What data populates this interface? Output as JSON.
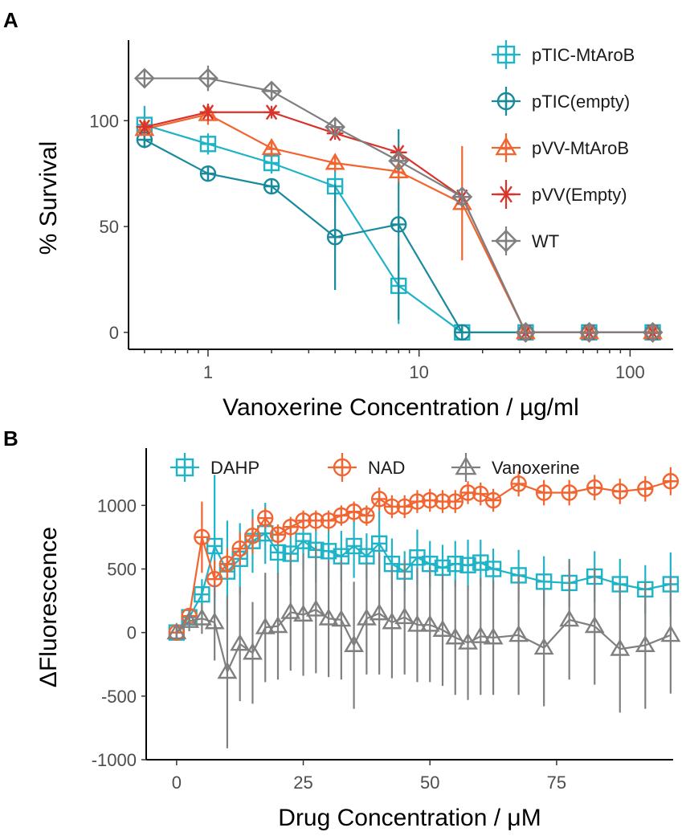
{
  "chart_data": [
    {
      "panel": "A",
      "type": "line",
      "title": "",
      "xlabel": "Vanoxerine Concentration / µg/ml",
      "ylabel": "% Survival",
      "xscale": "log",
      "xlim": [
        0.42,
        160
      ],
      "ylim": [
        -8,
        135
      ],
      "xticks": [
        1,
        10,
        100
      ],
      "xtick_labels": [
        "1",
        "10",
        "100"
      ],
      "yticks": [
        0,
        50,
        100
      ],
      "ytick_labels": [
        "0",
        "50",
        "100"
      ],
      "legend_position": "top-right",
      "series": [
        {
          "name": "pTIC-MtAroB",
          "color": "#1fb3c7",
          "marker": "square-cross",
          "x": [
            0.5,
            1,
            2,
            4,
            8,
            16,
            32,
            64,
            128
          ],
          "y": [
            98,
            89,
            80,
            69,
            22,
            0,
            0,
            0,
            0
          ],
          "err": [
            9,
            5,
            5,
            8,
            18,
            0,
            0,
            0,
            0
          ]
        },
        {
          "name": "pTIC(empty)",
          "color": "#178a9c",
          "marker": "circle-plus",
          "x": [
            0.5,
            1,
            2,
            4,
            8,
            16,
            32,
            64,
            128
          ],
          "y": [
            91,
            75,
            69,
            45,
            51,
            0,
            0,
            0,
            0
          ],
          "err": [
            4,
            3,
            3,
            25,
            45,
            0,
            0,
            0,
            0
          ]
        },
        {
          "name": "pVV-MtAroB",
          "color": "#f26430",
          "marker": "triangle-plus",
          "x": [
            0.5,
            1,
            2,
            4,
            8,
            16,
            32,
            64,
            128
          ],
          "y": [
            96,
            103,
            87,
            80,
            76,
            61,
            0,
            0,
            0
          ],
          "err": [
            3,
            5,
            4,
            4,
            5,
            27,
            0,
            0,
            0
          ]
        },
        {
          "name": "pVV(Empty)",
          "color": "#d9342b",
          "marker": "asterisk",
          "x": [
            0.5,
            1,
            2,
            4,
            8,
            16,
            32,
            64,
            128
          ],
          "y": [
            97,
            104,
            104,
            94,
            85,
            64,
            0,
            0,
            0
          ],
          "err": [
            3,
            4,
            3,
            3,
            3,
            4,
            0,
            0,
            0
          ]
        },
        {
          "name": "WT",
          "color": "#7f7f7f",
          "marker": "diamond-plus",
          "x": [
            0.5,
            1,
            2,
            4,
            8,
            16,
            32,
            64,
            128
          ],
          "y": [
            120,
            120,
            114,
            97,
            81,
            64,
            0,
            0,
            0
          ],
          "err": [
            2,
            6,
            3,
            3,
            3,
            3,
            0,
            0,
            0
          ]
        }
      ]
    },
    {
      "panel": "B",
      "type": "line",
      "title": "",
      "xlabel": "Drug Concentration / μM",
      "ylabel": "ΔFluorescence",
      "xlim": [
        -6,
        98
      ],
      "ylim": [
        -1000,
        1400
      ],
      "xticks": [
        0,
        25,
        50,
        75
      ],
      "xtick_labels": [
        "0",
        "25",
        "50",
        "75"
      ],
      "yticks": [
        -1000,
        -500,
        0,
        500,
        1000
      ],
      "ytick_labels": [
        "-1000",
        "-500",
        "0",
        "500",
        "1000"
      ],
      "legend_position": "top",
      "series": [
        {
          "name": "DAHP",
          "color": "#1fb3c7",
          "marker": "square-cross",
          "x": [
            0,
            2.5,
            5,
            7.5,
            10,
            12.5,
            15,
            17.5,
            20,
            22.5,
            25,
            27.5,
            30,
            32.5,
            35,
            37.5,
            40,
            42.5,
            45,
            47.5,
            50,
            52.5,
            55,
            57.5,
            60,
            62.5,
            67.5,
            72.5,
            77.5,
            82.5,
            87.5,
            92.5,
            97.5
          ],
          "y": [
            0,
            120,
            300,
            680,
            480,
            580,
            720,
            780,
            630,
            620,
            720,
            650,
            640,
            600,
            680,
            600,
            700,
            540,
            480,
            590,
            540,
            510,
            540,
            530,
            550,
            500,
            450,
            400,
            390,
            440,
            380,
            340,
            380
          ],
          "err": [
            50,
            60,
            120,
            560,
            400,
            280,
            250,
            240,
            200,
            250,
            220,
            260,
            220,
            200,
            250,
            180,
            260,
            200,
            160,
            220,
            180,
            180,
            180,
            200,
            180,
            160,
            200,
            200,
            190,
            200,
            200,
            190,
            250
          ]
        },
        {
          "name": "NAD",
          "color": "#f26430",
          "marker": "circle-plus",
          "x": [
            0,
            2.5,
            5,
            7.5,
            10,
            12.5,
            15,
            17.5,
            20,
            22.5,
            25,
            27.5,
            30,
            32.5,
            35,
            37.5,
            40,
            42.5,
            45,
            47.5,
            50,
            52.5,
            55,
            57.5,
            60,
            62.5,
            67.5,
            72.5,
            77.5,
            82.5,
            87.5,
            92.5,
            97.5
          ],
          "y": [
            0,
            130,
            750,
            420,
            540,
            660,
            760,
            900,
            770,
            830,
            880,
            880,
            880,
            920,
            950,
            920,
            1050,
            990,
            990,
            1030,
            1040,
            1030,
            1030,
            1100,
            1090,
            1040,
            1170,
            1100,
            1100,
            1140,
            1110,
            1130,
            1190
          ],
          "err": [
            30,
            40,
            280,
            150,
            120,
            130,
            140,
            80,
            80,
            80,
            80,
            80,
            80,
            80,
            80,
            80,
            90,
            90,
            90,
            90,
            90,
            90,
            90,
            90,
            90,
            90,
            100,
            100,
            100,
            100,
            100,
            100,
            110
          ]
        },
        {
          "name": "Vanoxerine",
          "color": "#7f7f7f",
          "marker": "triangle",
          "x": [
            0,
            2.5,
            5,
            7.5,
            10,
            12.5,
            15,
            17.5,
            20,
            22.5,
            25,
            27.5,
            30,
            32.5,
            35,
            37.5,
            40,
            42.5,
            45,
            47.5,
            50,
            52.5,
            55,
            57.5,
            60,
            62.5,
            67.5,
            72.5,
            77.5,
            82.5,
            87.5,
            92.5,
            97.5
          ],
          "y": [
            0,
            90,
            110,
            80,
            -310,
            -90,
            -160,
            40,
            50,
            160,
            140,
            180,
            110,
            100,
            -100,
            110,
            150,
            80,
            120,
            60,
            60,
            20,
            -40,
            -80,
            -30,
            -40,
            -20,
            -120,
            100,
            50,
            -130,
            -100,
            -20
          ],
          "err": [
            40,
            80,
            120,
            300,
            600,
            450,
            400,
            430,
            420,
            460,
            480,
            500,
            460,
            470,
            500,
            440,
            480,
            440,
            450,
            450,
            450,
            440,
            450,
            450,
            460,
            450,
            470,
            460,
            470,
            460,
            500,
            500,
            460
          ]
        }
      ]
    }
  ]
}
